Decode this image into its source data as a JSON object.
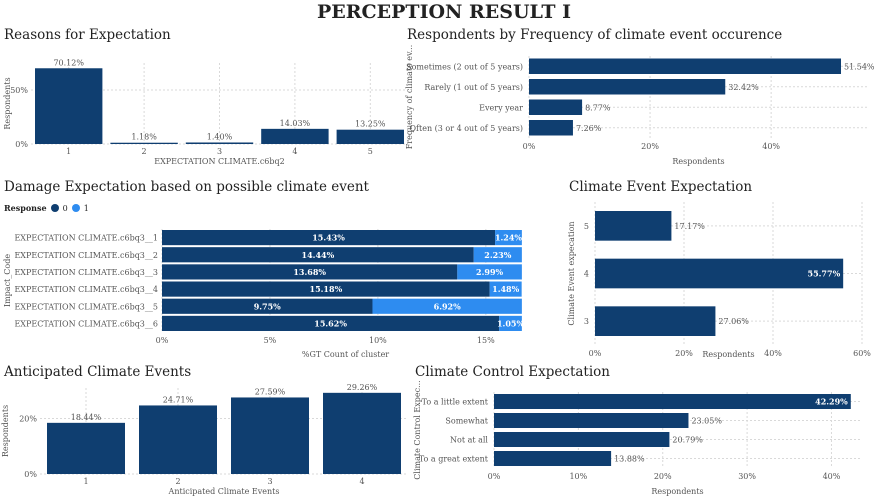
{
  "page": {
    "title": "PERCEPTION RESULT I"
  },
  "colors": {
    "dark": "#0f3e70",
    "light": "#2e8cf0",
    "grid": "#d9d9d9",
    "text": "#555555"
  },
  "chart_data": [
    {
      "id": "reasons",
      "type": "bar",
      "title": "Reasons for Expectation",
      "xlabel": "EXPECTATION CLIMATE.c6bq2",
      "ylabel": "Respondents",
      "categories": [
        "1",
        "2",
        "3",
        "4",
        "5"
      ],
      "values": [
        70.12,
        1.18,
        1.4,
        14.03,
        13.25
      ],
      "labels": [
        "70.12%",
        "1.18%",
        "1.40%",
        "14.03%",
        "13.25%"
      ],
      "yticks": [
        "0%",
        "50%"
      ],
      "ylim": [
        0,
        75
      ],
      "grid": true
    },
    {
      "id": "frequency",
      "type": "bar",
      "orientation": "horizontal",
      "title": "Respondents by Frequency of climate event occurence",
      "xlabel": "Respondents",
      "ylabel": "Frequency of climate ev...",
      "categories": [
        "Sometimes (2 out of 5 years)",
        "Rarely (1 out of 5 years)",
        "Every year",
        "Often (3 or 4 out of 5 years)"
      ],
      "values": [
        51.54,
        32.42,
        8.77,
        7.26
      ],
      "labels": [
        "51.54%",
        "32.42%",
        "8.77%",
        "7.26%"
      ],
      "xticks": [
        "0%",
        "20%",
        "40%"
      ],
      "xlim": [
        0,
        56
      ],
      "grid": true
    },
    {
      "id": "damage",
      "type": "bar",
      "orientation": "horizontal",
      "stacked": true,
      "title": "Damage Expectation based on possible climate event",
      "xlabel": "%GT Count of cluster",
      "ylabel": "Impact_Code",
      "legend": {
        "title": "Response",
        "entries": [
          "0",
          "1"
        ],
        "position": "top-left"
      },
      "categories": [
        "EXPECTATION CLIMATE.c6bq3__1",
        "EXPECTATION CLIMATE.c6bq3__2",
        "EXPECTATION CLIMATE.c6bq3__3",
        "EXPECTATION CLIMATE.c6bq3__4",
        "EXPECTATION CLIMATE.c6bq3__5",
        "EXPECTATION CLIMATE.c6bq3__6"
      ],
      "series": [
        {
          "name": "0",
          "values": [
            15.43,
            14.44,
            13.68,
            15.18,
            9.75,
            15.62
          ],
          "labels": [
            "15.43%",
            "14.44%",
            "13.68%",
            "15.18%",
            "9.75%",
            "15.62%"
          ]
        },
        {
          "name": "1",
          "values": [
            1.24,
            2.23,
            2.99,
            1.48,
            6.92,
            1.05
          ],
          "labels": [
            "1.24%",
            "2.23%",
            "2.99%",
            "1.48%",
            "6.92%",
            "1.05%"
          ]
        }
      ],
      "xticks": [
        "0%",
        "5%",
        "10%",
        "15%"
      ],
      "xlim": [
        0,
        17
      ],
      "grid": true
    },
    {
      "id": "climate_event",
      "type": "bar",
      "orientation": "horizontal",
      "title": "Climate Event Expectation",
      "xlabel": "Respondents",
      "ylabel": "Climate Event expecation",
      "categories": [
        "5",
        "4",
        "3"
      ],
      "values": [
        17.17,
        55.77,
        27.06
      ],
      "labels": [
        "17.17%",
        "55.77%",
        "27.06%"
      ],
      "xticks": [
        "0%",
        "20%",
        "40%",
        "60%"
      ],
      "xlim": [
        0,
        60
      ],
      "grid": true
    },
    {
      "id": "anticipated",
      "type": "bar",
      "title": "Anticipated Climate Events",
      "xlabel": "Anticipated Climate Events",
      "ylabel": "Respondents",
      "categories": [
        "1",
        "2",
        "3",
        "4"
      ],
      "values": [
        18.44,
        24.71,
        27.59,
        29.26
      ],
      "labels": [
        "18.44%",
        "24.71%",
        "27.59%",
        "29.26%"
      ],
      "yticks": [
        "0%",
        "20%"
      ],
      "ylim": [
        0,
        31
      ],
      "grid": true
    },
    {
      "id": "control",
      "type": "bar",
      "orientation": "horizontal",
      "title": "Climate Control Expectation",
      "xlabel": "Respondents",
      "ylabel": "Climate Control Expec...",
      "categories": [
        "To a little extent",
        "Somewhat",
        "Not at all",
        "To a great extent"
      ],
      "values": [
        42.29,
        23.05,
        20.79,
        13.88
      ],
      "labels": [
        "42.29%",
        "23.05%",
        "20.79%",
        "13.88%"
      ],
      "xticks": [
        "0%",
        "10%",
        "20%",
        "30%",
        "40%"
      ],
      "xlim": [
        0,
        43.5
      ],
      "grid": true
    }
  ]
}
